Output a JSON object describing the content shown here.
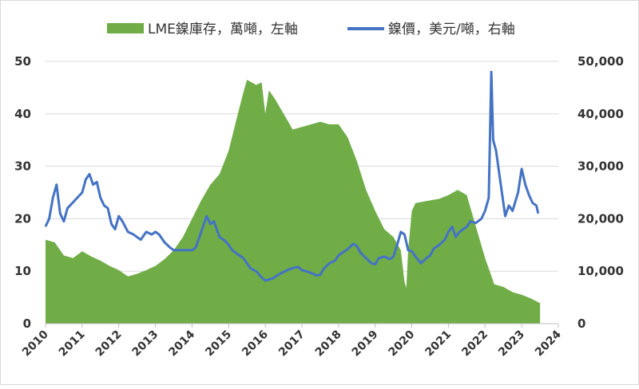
{
  "chart_data": {
    "type": "area+line",
    "title": "",
    "legend": {
      "position": "top",
      "items": [
        {
          "name": "LME鎳庫存，萬噸，左軸",
          "color": "#70ad47",
          "kind": "area"
        },
        {
          "name": "鎳價，美元/噸，右軸",
          "color": "#4472c4",
          "kind": "line"
        }
      ]
    },
    "x_axis": {
      "ticks": [
        "2010",
        "2011",
        "2012",
        "2013",
        "2014",
        "2015",
        "2016",
        "2017",
        "2018",
        "2019",
        "2020",
        "2021",
        "2022",
        "2023",
        "2024"
      ],
      "range": [
        2010,
        2024
      ]
    },
    "y_left": {
      "range": [
        0,
        50
      ],
      "ticks": [
        "0",
        "10",
        "20",
        "30",
        "40",
        "50"
      ]
    },
    "y_right": {
      "range": [
        0,
        50000
      ],
      "ticks": [
        "0",
        "10,000",
        "20,000",
        "30,000",
        "40,000",
        "50,000"
      ]
    },
    "grid": "horizontal",
    "series": [
      {
        "name": "LME鎳庫存，萬噸，左軸",
        "axis": "left",
        "color": "#70ad47",
        "points": [
          [
            2010.0,
            16.0
          ],
          [
            2010.25,
            15.5
          ],
          [
            2010.5,
            13.0
          ],
          [
            2010.75,
            12.5
          ],
          [
            2011.0,
            13.8
          ],
          [
            2011.25,
            12.8
          ],
          [
            2011.5,
            12.0
          ],
          [
            2011.75,
            11.0
          ],
          [
            2012.0,
            10.2
          ],
          [
            2012.25,
            9.0
          ],
          [
            2012.5,
            9.5
          ],
          [
            2012.75,
            10.2
          ],
          [
            2013.0,
            11.0
          ],
          [
            2013.25,
            12.3
          ],
          [
            2013.5,
            14.0
          ],
          [
            2013.75,
            16.5
          ],
          [
            2014.0,
            20.0
          ],
          [
            2014.25,
            23.5
          ],
          [
            2014.5,
            26.5
          ],
          [
            2014.75,
            28.5
          ],
          [
            2015.0,
            33.0
          ],
          [
            2015.25,
            40.0
          ],
          [
            2015.4,
            44.0
          ],
          [
            2015.5,
            46.5
          ],
          [
            2015.75,
            45.5
          ],
          [
            2015.9,
            46.0
          ],
          [
            2016.0,
            40.0
          ],
          [
            2016.1,
            44.5
          ],
          [
            2016.25,
            43.0
          ],
          [
            2016.5,
            40.0
          ],
          [
            2016.75,
            37.0
          ],
          [
            2017.0,
            37.5
          ],
          [
            2017.25,
            38.0
          ],
          [
            2017.5,
            38.5
          ],
          [
            2017.75,
            38.0
          ],
          [
            2018.0,
            38.0
          ],
          [
            2018.25,
            35.5
          ],
          [
            2018.5,
            31.0
          ],
          [
            2018.75,
            25.5
          ],
          [
            2019.0,
            21.5
          ],
          [
            2019.25,
            18.0
          ],
          [
            2019.5,
            16.5
          ],
          [
            2019.7,
            14.0
          ],
          [
            2019.8,
            8.0
          ],
          [
            2019.85,
            6.8
          ],
          [
            2019.9,
            14.0
          ],
          [
            2020.0,
            21.5
          ],
          [
            2020.1,
            23.0
          ],
          [
            2020.5,
            23.5
          ],
          [
            2020.75,
            23.8
          ],
          [
            2021.0,
            24.5
          ],
          [
            2021.25,
            25.5
          ],
          [
            2021.5,
            24.5
          ],
          [
            2021.75,
            18.5
          ],
          [
            2022.0,
            12.5
          ],
          [
            2022.25,
            7.5
          ],
          [
            2022.5,
            7.0
          ],
          [
            2022.75,
            6.0
          ],
          [
            2023.0,
            5.5
          ],
          [
            2023.25,
            4.8
          ],
          [
            2023.5,
            3.9
          ]
        ]
      },
      {
        "name": "鎳價，美元/噸，右軸",
        "axis": "right",
        "color": "#4472c4",
        "points": [
          [
            2010.0,
            18500
          ],
          [
            2010.1,
            20000
          ],
          [
            2010.2,
            24000
          ],
          [
            2010.3,
            26500
          ],
          [
            2010.4,
            21000
          ],
          [
            2010.5,
            19500
          ],
          [
            2010.6,
            22000
          ],
          [
            2010.8,
            23500
          ],
          [
            2011.0,
            25000
          ],
          [
            2011.1,
            27500
          ],
          [
            2011.2,
            28500
          ],
          [
            2011.3,
            26500
          ],
          [
            2011.4,
            27000
          ],
          [
            2011.5,
            24000
          ],
          [
            2011.6,
            22500
          ],
          [
            2011.7,
            22000
          ],
          [
            2011.8,
            19000
          ],
          [
            2011.9,
            18000
          ],
          [
            2012.0,
            20500
          ],
          [
            2012.1,
            19500
          ],
          [
            2012.25,
            17500
          ],
          [
            2012.4,
            17000
          ],
          [
            2012.5,
            16500
          ],
          [
            2012.6,
            16000
          ],
          [
            2012.75,
            17500
          ],
          [
            2012.9,
            17000
          ],
          [
            2013.0,
            17500
          ],
          [
            2013.1,
            17000
          ],
          [
            2013.25,
            15500
          ],
          [
            2013.4,
            14500
          ],
          [
            2013.5,
            14000
          ],
          [
            2013.75,
            14000
          ],
          [
            2014.0,
            14000
          ],
          [
            2014.1,
            14500
          ],
          [
            2014.25,
            17500
          ],
          [
            2014.4,
            20500
          ],
          [
            2014.5,
            19000
          ],
          [
            2014.6,
            19500
          ],
          [
            2014.75,
            16500
          ],
          [
            2014.9,
            15800
          ],
          [
            2015.0,
            15000
          ],
          [
            2015.1,
            14000
          ],
          [
            2015.25,
            13200
          ],
          [
            2015.4,
            12500
          ],
          [
            2015.5,
            11500
          ],
          [
            2015.6,
            10500
          ],
          [
            2015.75,
            10000
          ],
          [
            2015.9,
            8800
          ],
          [
            2016.0,
            8200
          ],
          [
            2016.2,
            8600
          ],
          [
            2016.4,
            9500
          ],
          [
            2016.6,
            10200
          ],
          [
            2016.75,
            10600
          ],
          [
            2016.9,
            10800
          ],
          [
            2017.0,
            10200
          ],
          [
            2017.2,
            9800
          ],
          [
            2017.4,
            9200
          ],
          [
            2017.5,
            9300
          ],
          [
            2017.6,
            10500
          ],
          [
            2017.75,
            11500
          ],
          [
            2017.9,
            12000
          ],
          [
            2018.0,
            13000
          ],
          [
            2018.1,
            13500
          ],
          [
            2018.25,
            14200
          ],
          [
            2018.4,
            15200
          ],
          [
            2018.5,
            14800
          ],
          [
            2018.6,
            13500
          ],
          [
            2018.75,
            12500
          ],
          [
            2018.9,
            11500
          ],
          [
            2019.0,
            11300
          ],
          [
            2019.1,
            12500
          ],
          [
            2019.25,
            12800
          ],
          [
            2019.4,
            12300
          ],
          [
            2019.5,
            12800
          ],
          [
            2019.6,
            15000
          ],
          [
            2019.7,
            17500
          ],
          [
            2019.8,
            17000
          ],
          [
            2019.9,
            14000
          ],
          [
            2020.0,
            13800
          ],
          [
            2020.1,
            12800
          ],
          [
            2020.25,
            11500
          ],
          [
            2020.4,
            12500
          ],
          [
            2020.5,
            13000
          ],
          [
            2020.6,
            14300
          ],
          [
            2020.75,
            15000
          ],
          [
            2020.9,
            16000
          ],
          [
            2021.0,
            17500
          ],
          [
            2021.1,
            18500
          ],
          [
            2021.2,
            16500
          ],
          [
            2021.3,
            17500
          ],
          [
            2021.4,
            18000
          ],
          [
            2021.5,
            18500
          ],
          [
            2021.6,
            19500
          ],
          [
            2021.75,
            19200
          ],
          [
            2021.9,
            20000
          ],
          [
            2022.0,
            21500
          ],
          [
            2022.1,
            24000
          ],
          [
            2022.17,
            48000
          ],
          [
            2022.22,
            35000
          ],
          [
            2022.3,
            33000
          ],
          [
            2022.4,
            28000
          ],
          [
            2022.5,
            23000
          ],
          [
            2022.55,
            20500
          ],
          [
            2022.65,
            22500
          ],
          [
            2022.75,
            21500
          ],
          [
            2022.9,
            25000
          ],
          [
            2023.0,
            29500
          ],
          [
            2023.1,
            26500
          ],
          [
            2023.2,
            24500
          ],
          [
            2023.3,
            23000
          ],
          [
            2023.4,
            22500
          ],
          [
            2023.45,
            21000
          ]
        ]
      }
    ]
  }
}
